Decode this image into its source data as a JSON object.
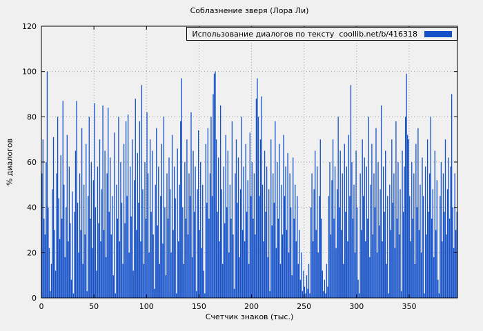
{
  "chart_data": {
    "type": "bar",
    "title": "Соблазнение зверя (Лора Ли)",
    "legend": "Использование диалогов по тексту  coollib.net/b/416318",
    "xlabel": "Счетчик знаков (тыс.)",
    "ylabel": "% диалогов",
    "xlim": [
      0,
      396
    ],
    "ylim": [
      0,
      120
    ],
    "x_ticks": [
      0,
      50,
      100,
      150,
      200,
      250,
      300,
      350
    ],
    "y_ticks": [
      0,
      20,
      40,
      60,
      80,
      100,
      120
    ],
    "grid": true,
    "legend_position": "top-right",
    "bar_color": "#1450c8",
    "values": [
      55,
      70,
      35,
      28,
      60,
      100,
      40,
      22,
      3,
      15,
      48,
      71,
      30,
      12,
      55,
      80,
      44,
      26,
      63,
      35,
      87,
      50,
      18,
      40,
      72,
      25,
      58,
      33,
      8,
      47,
      2,
      38,
      65,
      87,
      42,
      20,
      55,
      30,
      75,
      15,
      50,
      28,
      68,
      3,
      45,
      80,
      35,
      60,
      22,
      52,
      86,
      40,
      12,
      58,
      33,
      70,
      25,
      48,
      85,
      30,
      65,
      18,
      55,
      84,
      38,
      62,
      28,
      45,
      10,
      73,
      2,
      50,
      35,
      80,
      25,
      60,
      42,
      15,
      68,
      33,
      78,
      45,
      81,
      20,
      58,
      36,
      70,
      12,
      52,
      88,
      30,
      64,
      42,
      78,
      25,
      94,
      48,
      15,
      60,
      35,
      82,
      55,
      20,
      70,
      38,
      65,
      28,
      4,
      50,
      75,
      32,
      58,
      15,
      45,
      68,
      24,
      80,
      40,
      10,
      55,
      35,
      62,
      48,
      20,
      72,
      30,
      58,
      44,
      2,
      66,
      25,
      50,
      78,
      97,
      40,
      15,
      60,
      35,
      70,
      28,
      55,
      45,
      82,
      18,
      65,
      38,
      58,
      3,
      48,
      74,
      30,
      60,
      22,
      50,
      12,
      2,
      68,
      42,
      75,
      35,
      55,
      80,
      45,
      90,
      99,
      100,
      70,
      38,
      62,
      25,
      85,
      48,
      15,
      58,
      33,
      72,
      40,
      65,
      20,
      50,
      35,
      78,
      28,
      4,
      55,
      70,
      42,
      62,
      18,
      48,
      80,
      30,
      58,
      25,
      68,
      38,
      52,
      15,
      73,
      45,
      60,
      35,
      55,
      28,
      88,
      97,
      80,
      45,
      70,
      89,
      50,
      25,
      65,
      38,
      58,
      18,
      48,
      3,
      70,
      32,
      55,
      42,
      78,
      22,
      60,
      35,
      68,
      15,
      50,
      28,
      72,
      45,
      58,
      30,
      64,
      20,
      55,
      40,
      10,
      62,
      35,
      50,
      25,
      45,
      15,
      30,
      8,
      20,
      3,
      12,
      5,
      2,
      10,
      4,
      15,
      2,
      40,
      55,
      25,
      48,
      65,
      30,
      58,
      20,
      45,
      70,
      35,
      12,
      3,
      8,
      2,
      15,
      5,
      45,
      60,
      28,
      52,
      70,
      35,
      58,
      22,
      48,
      80,
      40,
      65,
      30,
      55,
      15,
      68,
      38,
      58,
      25,
      72,
      45,
      94,
      60,
      35,
      50,
      20,
      65,
      40,
      8,
      2,
      55,
      30,
      70,
      45,
      62,
      25,
      58,
      35,
      80,
      18,
      50,
      68,
      28,
      55,
      40,
      75,
      20,
      60,
      32,
      48,
      85,
      25,
      58,
      38,
      65,
      15,
      45,
      2,
      50,
      30,
      70,
      42,
      55,
      22,
      78,
      35,
      60,
      28,
      48,
      3,
      65,
      38,
      58,
      80,
      99,
      72,
      70,
      45,
      25,
      60,
      35,
      55,
      15,
      68,
      40,
      75,
      30,
      50,
      20,
      62,
      45,
      2,
      58,
      28,
      70,
      38,
      55,
      80,
      35,
      48,
      18,
      65,
      30,
      52,
      8,
      2,
      45,
      60,
      25,
      55,
      38,
      70,
      28,
      48,
      62,
      35,
      58,
      90,
      40,
      22,
      55,
      30,
      38
    ]
  }
}
